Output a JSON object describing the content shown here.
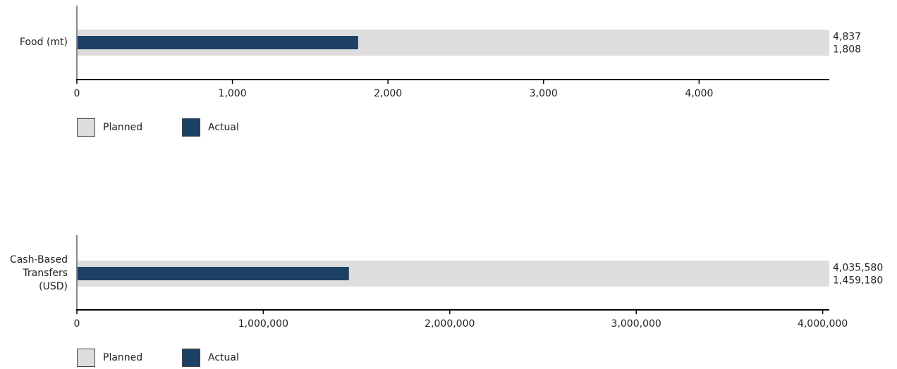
{
  "colors": {
    "planned": "#dddddd",
    "actual": "#1d4164",
    "axis": "#000000",
    "category_axis": "#888888"
  },
  "legend": {
    "planned": "Planned",
    "actual": "Actual"
  },
  "chart_data": [
    {
      "type": "bar",
      "orientation": "horizontal",
      "categories": [
        "Food (mt)"
      ],
      "category_label_lines": [
        "Food (mt)"
      ],
      "series": [
        {
          "name": "Planned",
          "values": [
            4837
          ]
        },
        {
          "name": "Actual",
          "values": [
            1808
          ]
        }
      ],
      "value_labels": {
        "planned": "4,837",
        "actual": "1,808"
      },
      "xlim": [
        0,
        4837
      ],
      "xticks": [
        0,
        1000,
        2000,
        3000,
        4000
      ],
      "xtick_labels": [
        "0",
        "1,000",
        "2,000",
        "3,000",
        "4,000"
      ],
      "legend_position": "bottom-left",
      "grid": false
    },
    {
      "type": "bar",
      "orientation": "horizontal",
      "categories": [
        "Cash-Based Transfers (USD)"
      ],
      "category_label_lines": [
        "Cash-Based",
        "Transfers",
        "(USD)"
      ],
      "series": [
        {
          "name": "Planned",
          "values": [
            4035580
          ]
        },
        {
          "name": "Actual",
          "values": [
            1459180
          ]
        }
      ],
      "value_labels": {
        "planned": "4,035,580",
        "actual": "1,459,180"
      },
      "xlim": [
        0,
        4035580
      ],
      "xticks": [
        0,
        1000000,
        2000000,
        3000000,
        4000000
      ],
      "xtick_labels": [
        "0",
        "1,000,000",
        "2,000,000",
        "3,000,000",
        "4,000,000"
      ],
      "legend_position": "bottom-left",
      "grid": false
    }
  ]
}
